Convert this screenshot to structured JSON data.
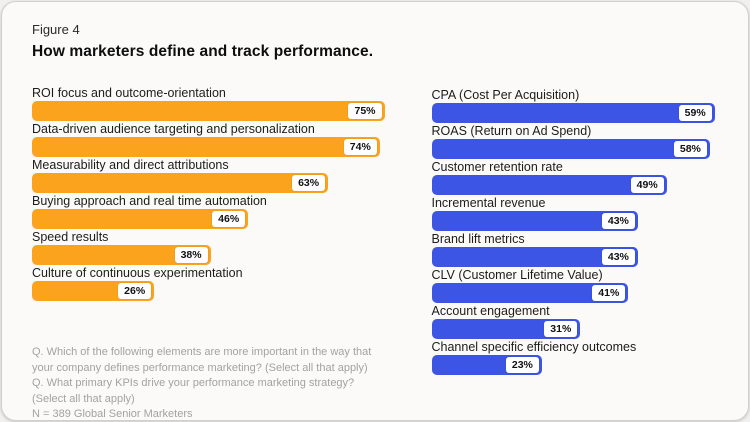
{
  "header": {
    "figure_label": "Figure 4",
    "title": "How marketers define and track performance."
  },
  "colors": {
    "left_bar": "#FBA31C",
    "right_bar": "#3C55E4",
    "value_badge_bg": "#FFFFFF",
    "value_badge_text": "#111111",
    "footnote_text": "#A3A2A1"
  },
  "chart_data": [
    {
      "type": "bar",
      "orientation": "horizontal",
      "bar_color": "#FBA31C",
      "data_labels": true,
      "grid": false,
      "xlim": [
        0,
        80
      ],
      "categories": [
        "ROI focus and outcome-orientation",
        "Data-driven audience targeting and personalization",
        "Measurability and direct attributions",
        "Buying approach and real time automation",
        "Speed results",
        "Culture of continuous experimentation"
      ],
      "values": [
        75,
        74,
        63,
        46,
        38,
        26
      ],
      "value_labels": [
        "75%",
        "74%",
        "63%",
        "46%",
        "38%",
        "26%"
      ]
    },
    {
      "type": "bar",
      "orientation": "horizontal",
      "bar_color": "#3C55E4",
      "data_labels": true,
      "grid": false,
      "xlim": [
        0,
        62
      ],
      "categories": [
        "CPA (Cost Per Acquisition)",
        "ROAS (Return on Ad Spend)",
        "Customer retention rate",
        "Incremental revenue",
        "Brand lift metrics",
        "CLV (Customer Lifetime Value)",
        "Account engagement",
        "Channel specific efficiency outcomes"
      ],
      "values": [
        59,
        58,
        49,
        43,
        43,
        41,
        31,
        23
      ],
      "value_labels": [
        "59%",
        "58%",
        "49%",
        "43%",
        "43%",
        "41%",
        "31%",
        "23%"
      ]
    }
  ],
  "footnotes": [
    "Q. Which of the following elements are more important in the way that your company defines performance marketing? (Select all that apply)",
    "Q. What primary KPIs drive your performance marketing strategy? (Select all that apply)",
    "N = 389 Global Senior Marketers"
  ]
}
